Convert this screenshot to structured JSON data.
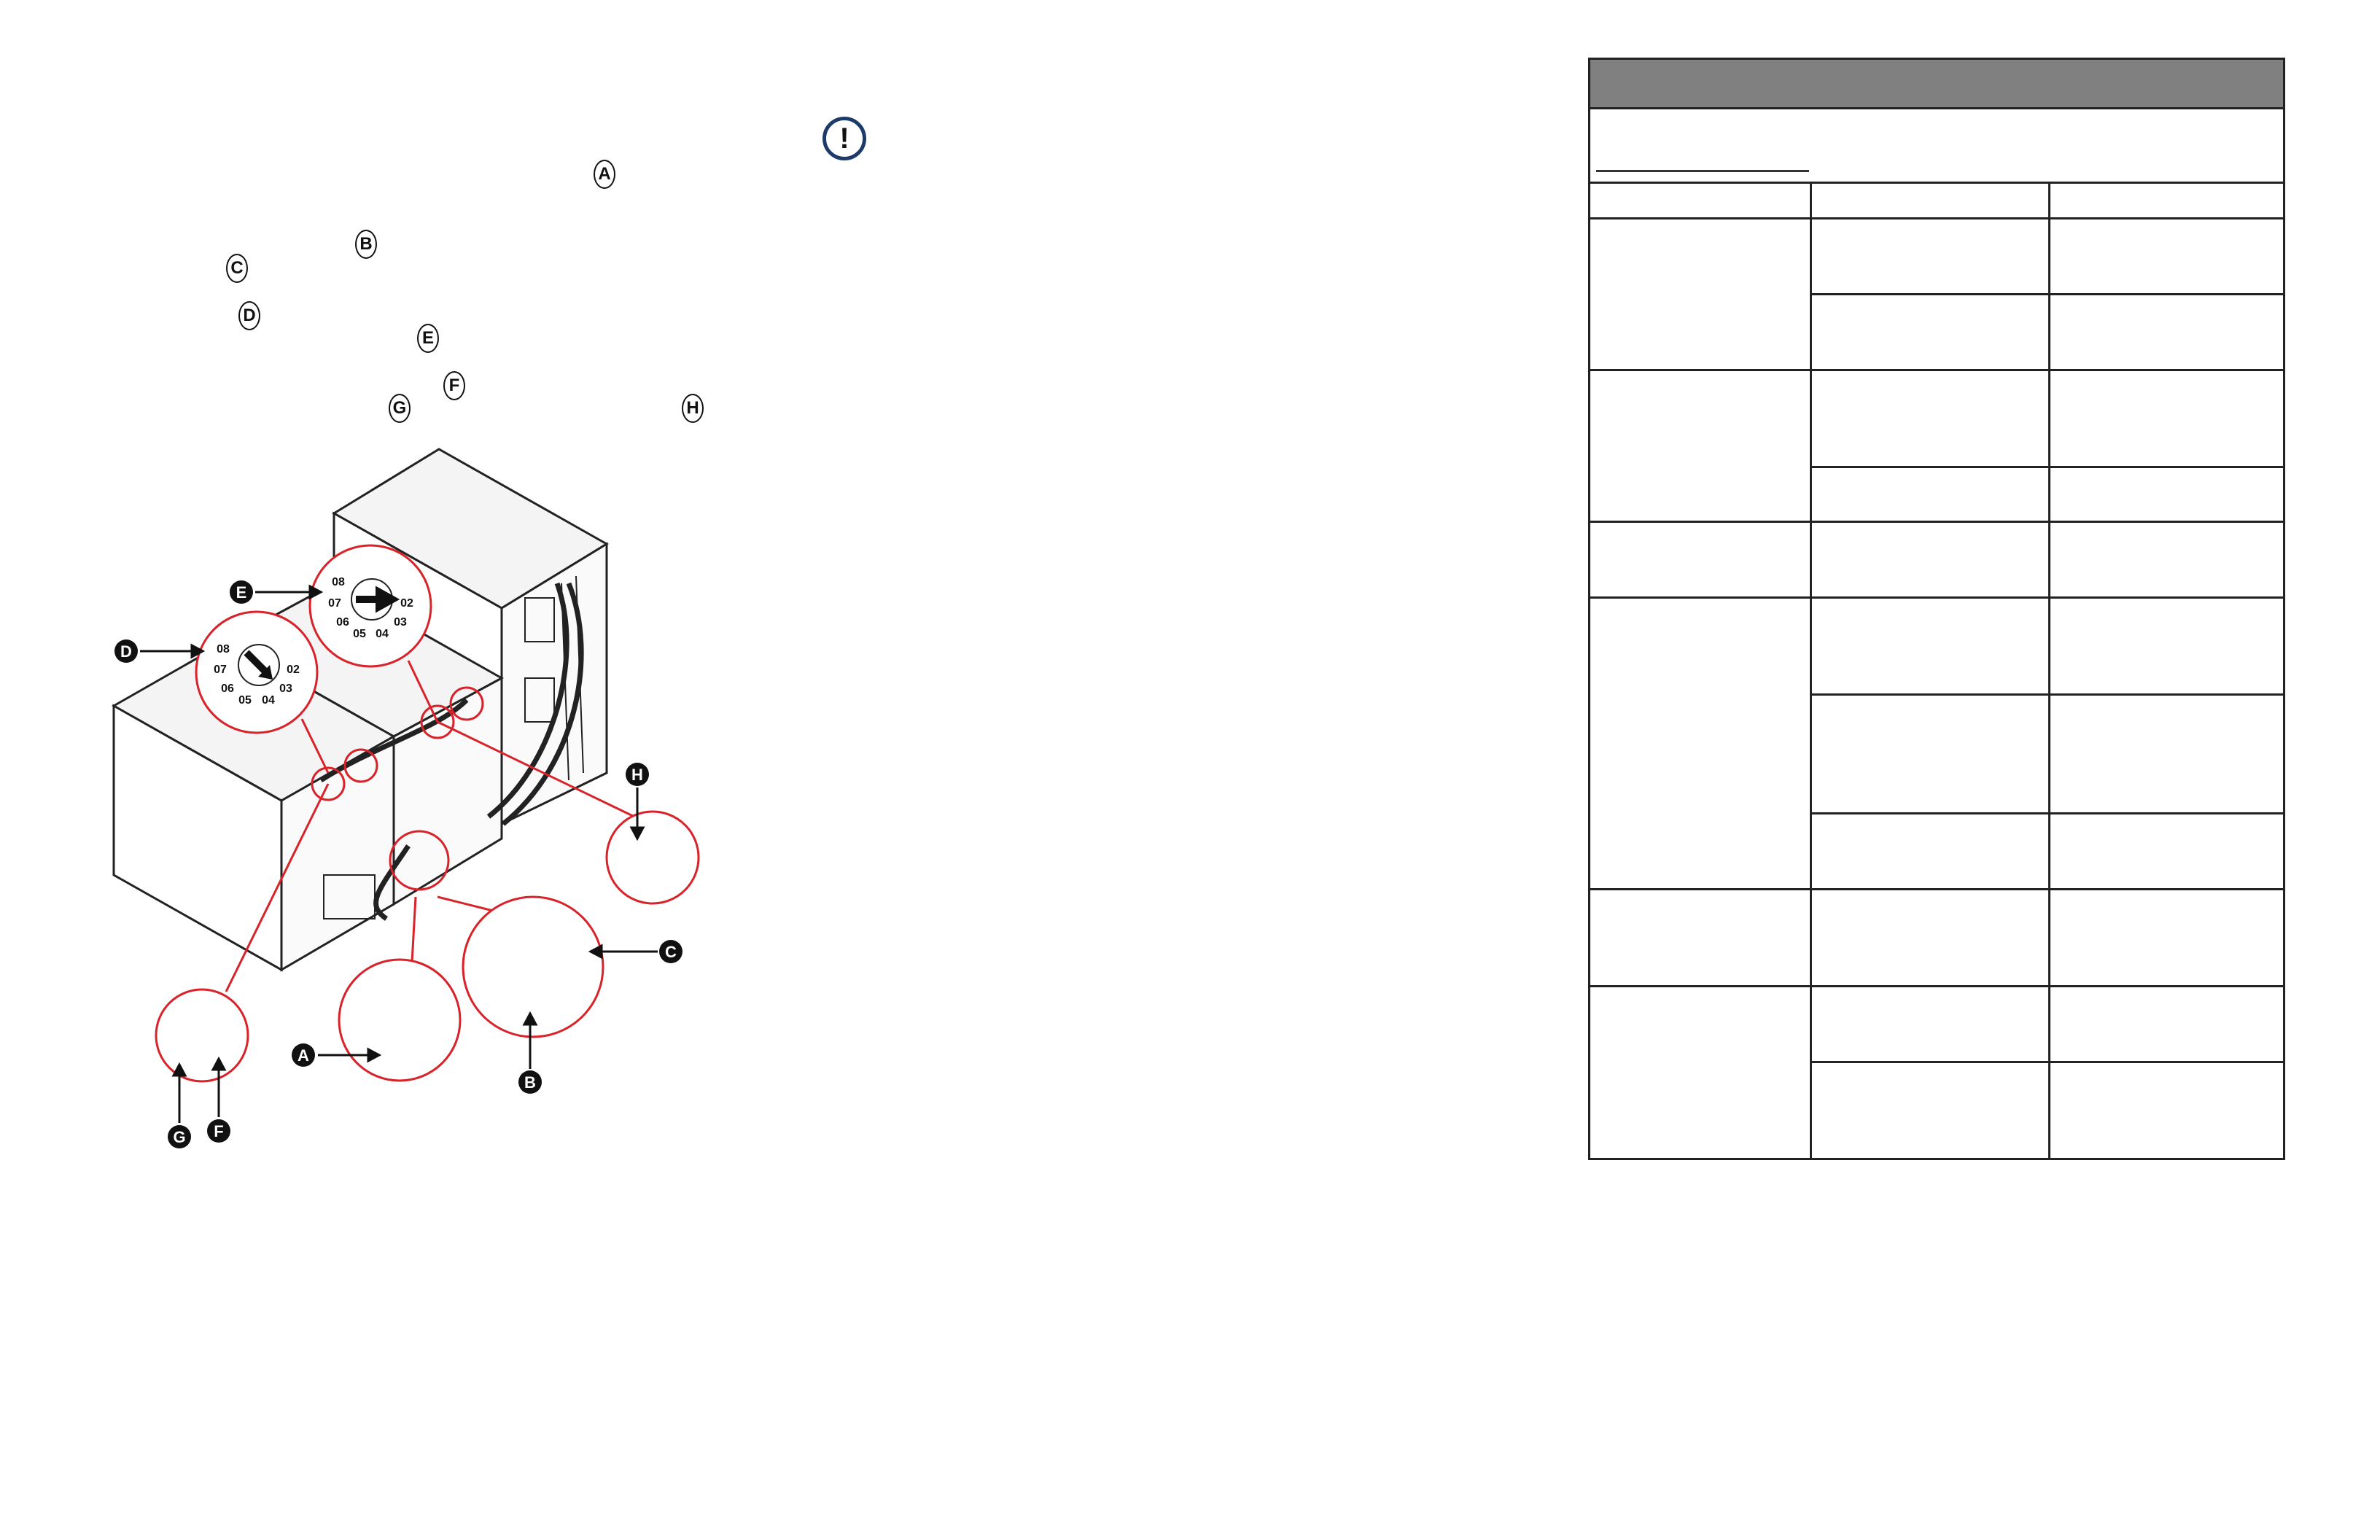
{
  "instructions": {
    "warning_icon": "exclamation-circle-icon",
    "warning_color": "#1d3a6b",
    "step_markers": [
      "A",
      "B",
      "C",
      "D",
      "E",
      "F",
      "G",
      "H"
    ]
  },
  "figure": {
    "callout_color": "#d8232a",
    "callout_labels": [
      "A",
      "B",
      "C",
      "D",
      "E",
      "F",
      "G",
      "H"
    ],
    "dial_positions": [
      "08",
      "07",
      "06",
      "05",
      "04",
      "03",
      "02"
    ]
  },
  "table": {
    "header_color": "#808080",
    "header_title": "",
    "intro_text": "",
    "columns": [
      "",
      "",
      ""
    ],
    "groups": [
      {
        "label": "",
        "rows": [
          [
            "",
            ""
          ],
          [
            "",
            ""
          ]
        ]
      },
      {
        "label": "",
        "rows": [
          [
            "",
            ""
          ],
          [
            "",
            ""
          ]
        ]
      },
      {
        "label": "",
        "rows": [
          [
            "",
            ""
          ]
        ]
      },
      {
        "label": "",
        "rows": [
          [
            "",
            ""
          ],
          [
            "",
            ""
          ],
          [
            "",
            ""
          ]
        ]
      },
      {
        "label": "",
        "rows": [
          [
            "",
            ""
          ]
        ]
      },
      {
        "label": "",
        "rows": [
          [
            "",
            ""
          ],
          [
            "",
            ""
          ]
        ]
      }
    ]
  }
}
